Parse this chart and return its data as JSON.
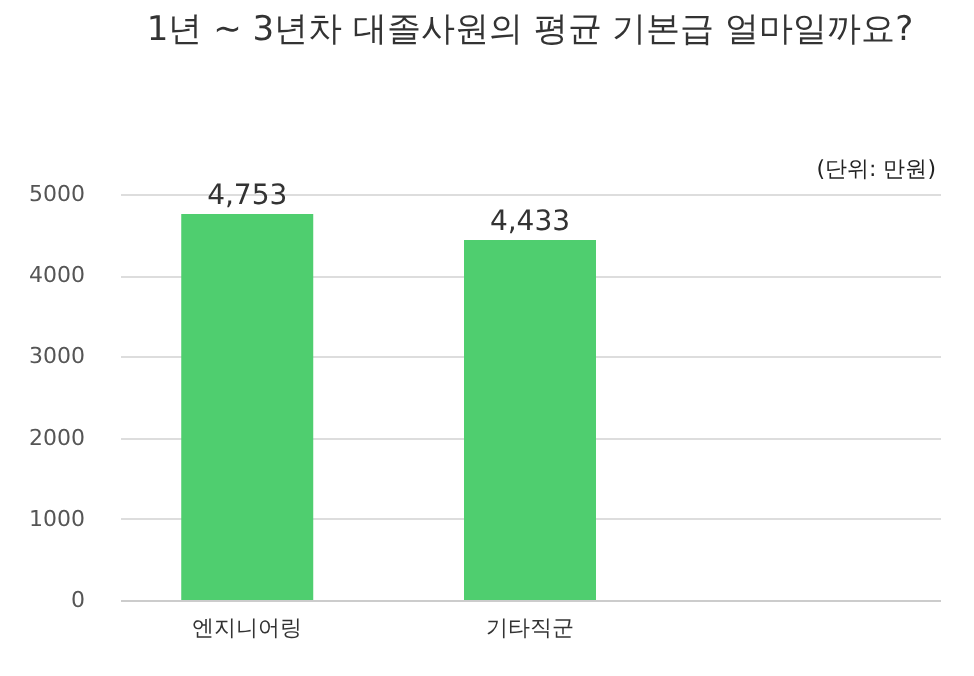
{
  "chart_data": {
    "type": "bar",
    "title": "1년 ~ 3년차 대졸사원의 평균 기본급 얼마일까요?",
    "categories": [
      "엔지니어링",
      "기타직군",
      null
    ],
    "values": [
      4753,
      4433,
      null
    ],
    "value_labels": [
      "4,753",
      "4,433",
      null
    ],
    "color": "#4fce6f",
    "ylim": [
      0,
      5000
    ],
    "yticks": [
      0,
      1000,
      2000,
      3000,
      4000,
      5000
    ],
    "grid": "y",
    "annotations": [
      "(단위: 만원)"
    ]
  }
}
